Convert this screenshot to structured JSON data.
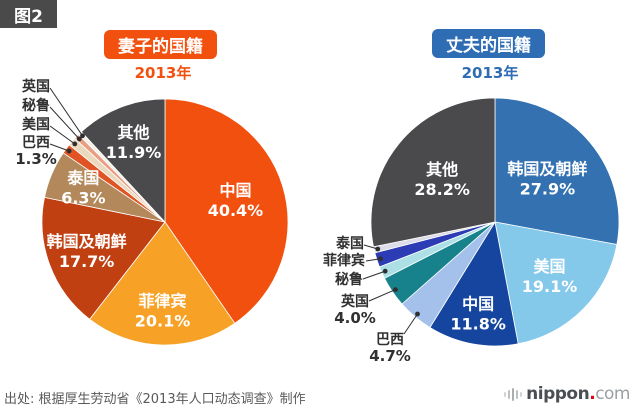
{
  "figure_label": "图2",
  "source_text": "出处: 根据厚生劳动省《2013年人口动态调查》制作",
  "logo": {
    "brand": "nippon",
    "dot": ".",
    "tld": "com"
  },
  "chart_data": [
    {
      "type": "pie",
      "title": "妻子的国籍",
      "subtitle": "2013年",
      "unit": "%",
      "start_angle": "top",
      "direction": "clockwise",
      "accent_color": "#f2500f",
      "other_color": "#4a4a4d",
      "slices": [
        {
          "label": "中国",
          "value": 40.4,
          "pct_text": "40.4%",
          "color": "#f2500f"
        },
        {
          "label": "菲律宾",
          "value": 20.1,
          "pct_text": "20.1%",
          "color": "#f7a126"
        },
        {
          "label": "韩国及朝鲜",
          "value": 17.7,
          "pct_text": "17.7%",
          "color": "#c04012"
        },
        {
          "label": "泰国",
          "value": 6.3,
          "pct_text": "6.3%",
          "color": "#b3885a"
        },
        {
          "label": "巴西",
          "value": 1.3,
          "pct_text": "1.3%",
          "color": "#e05324"
        },
        {
          "label": "美国",
          "value": 1.1,
          "pct_text": "",
          "color": "#ead9bd"
        },
        {
          "label": "秘鲁",
          "value": 0.7,
          "pct_text": "",
          "color": "#eb9d83"
        },
        {
          "label": "英国",
          "value": 0.5,
          "pct_text": "",
          "color": "#f6f1e7"
        },
        {
          "label": "其他",
          "value": 11.9,
          "pct_text": "11.9%",
          "color": "#4a4a4d"
        }
      ]
    },
    {
      "type": "pie",
      "title": "丈夫的国籍",
      "subtitle": "2013年",
      "unit": "%",
      "start_angle": "top",
      "direction": "clockwise",
      "accent_color": "#2e6db4",
      "other_color": "#4a4a4d",
      "slices": [
        {
          "label": "韩国及朝鲜",
          "value": 27.9,
          "pct_text": "27.9%",
          "color": "#3371b0"
        },
        {
          "label": "美国",
          "value": 19.1,
          "pct_text": "19.1%",
          "color": "#85c9ea"
        },
        {
          "label": "中国",
          "value": 11.8,
          "pct_text": "11.8%",
          "color": "#15459f"
        },
        {
          "label": "巴西",
          "value": 4.7,
          "pct_text": "4.7%",
          "color": "#a3c1ea"
        },
        {
          "label": "英国",
          "value": 4.0,
          "pct_text": "4.0%",
          "color": "#17828c"
        },
        {
          "label": "秘鲁",
          "value": 1.6,
          "pct_text": "",
          "color": "#ace0e6"
        },
        {
          "label": "菲律宾",
          "value": 1.9,
          "pct_text": "",
          "color": "#2b3cb4"
        },
        {
          "label": "泰国",
          "value": 0.8,
          "pct_text": "",
          "color": "#dcdde8"
        },
        {
          "label": "其他",
          "value": 28.2,
          "pct_text": "28.2%",
          "color": "#4a4a4d"
        }
      ]
    }
  ]
}
